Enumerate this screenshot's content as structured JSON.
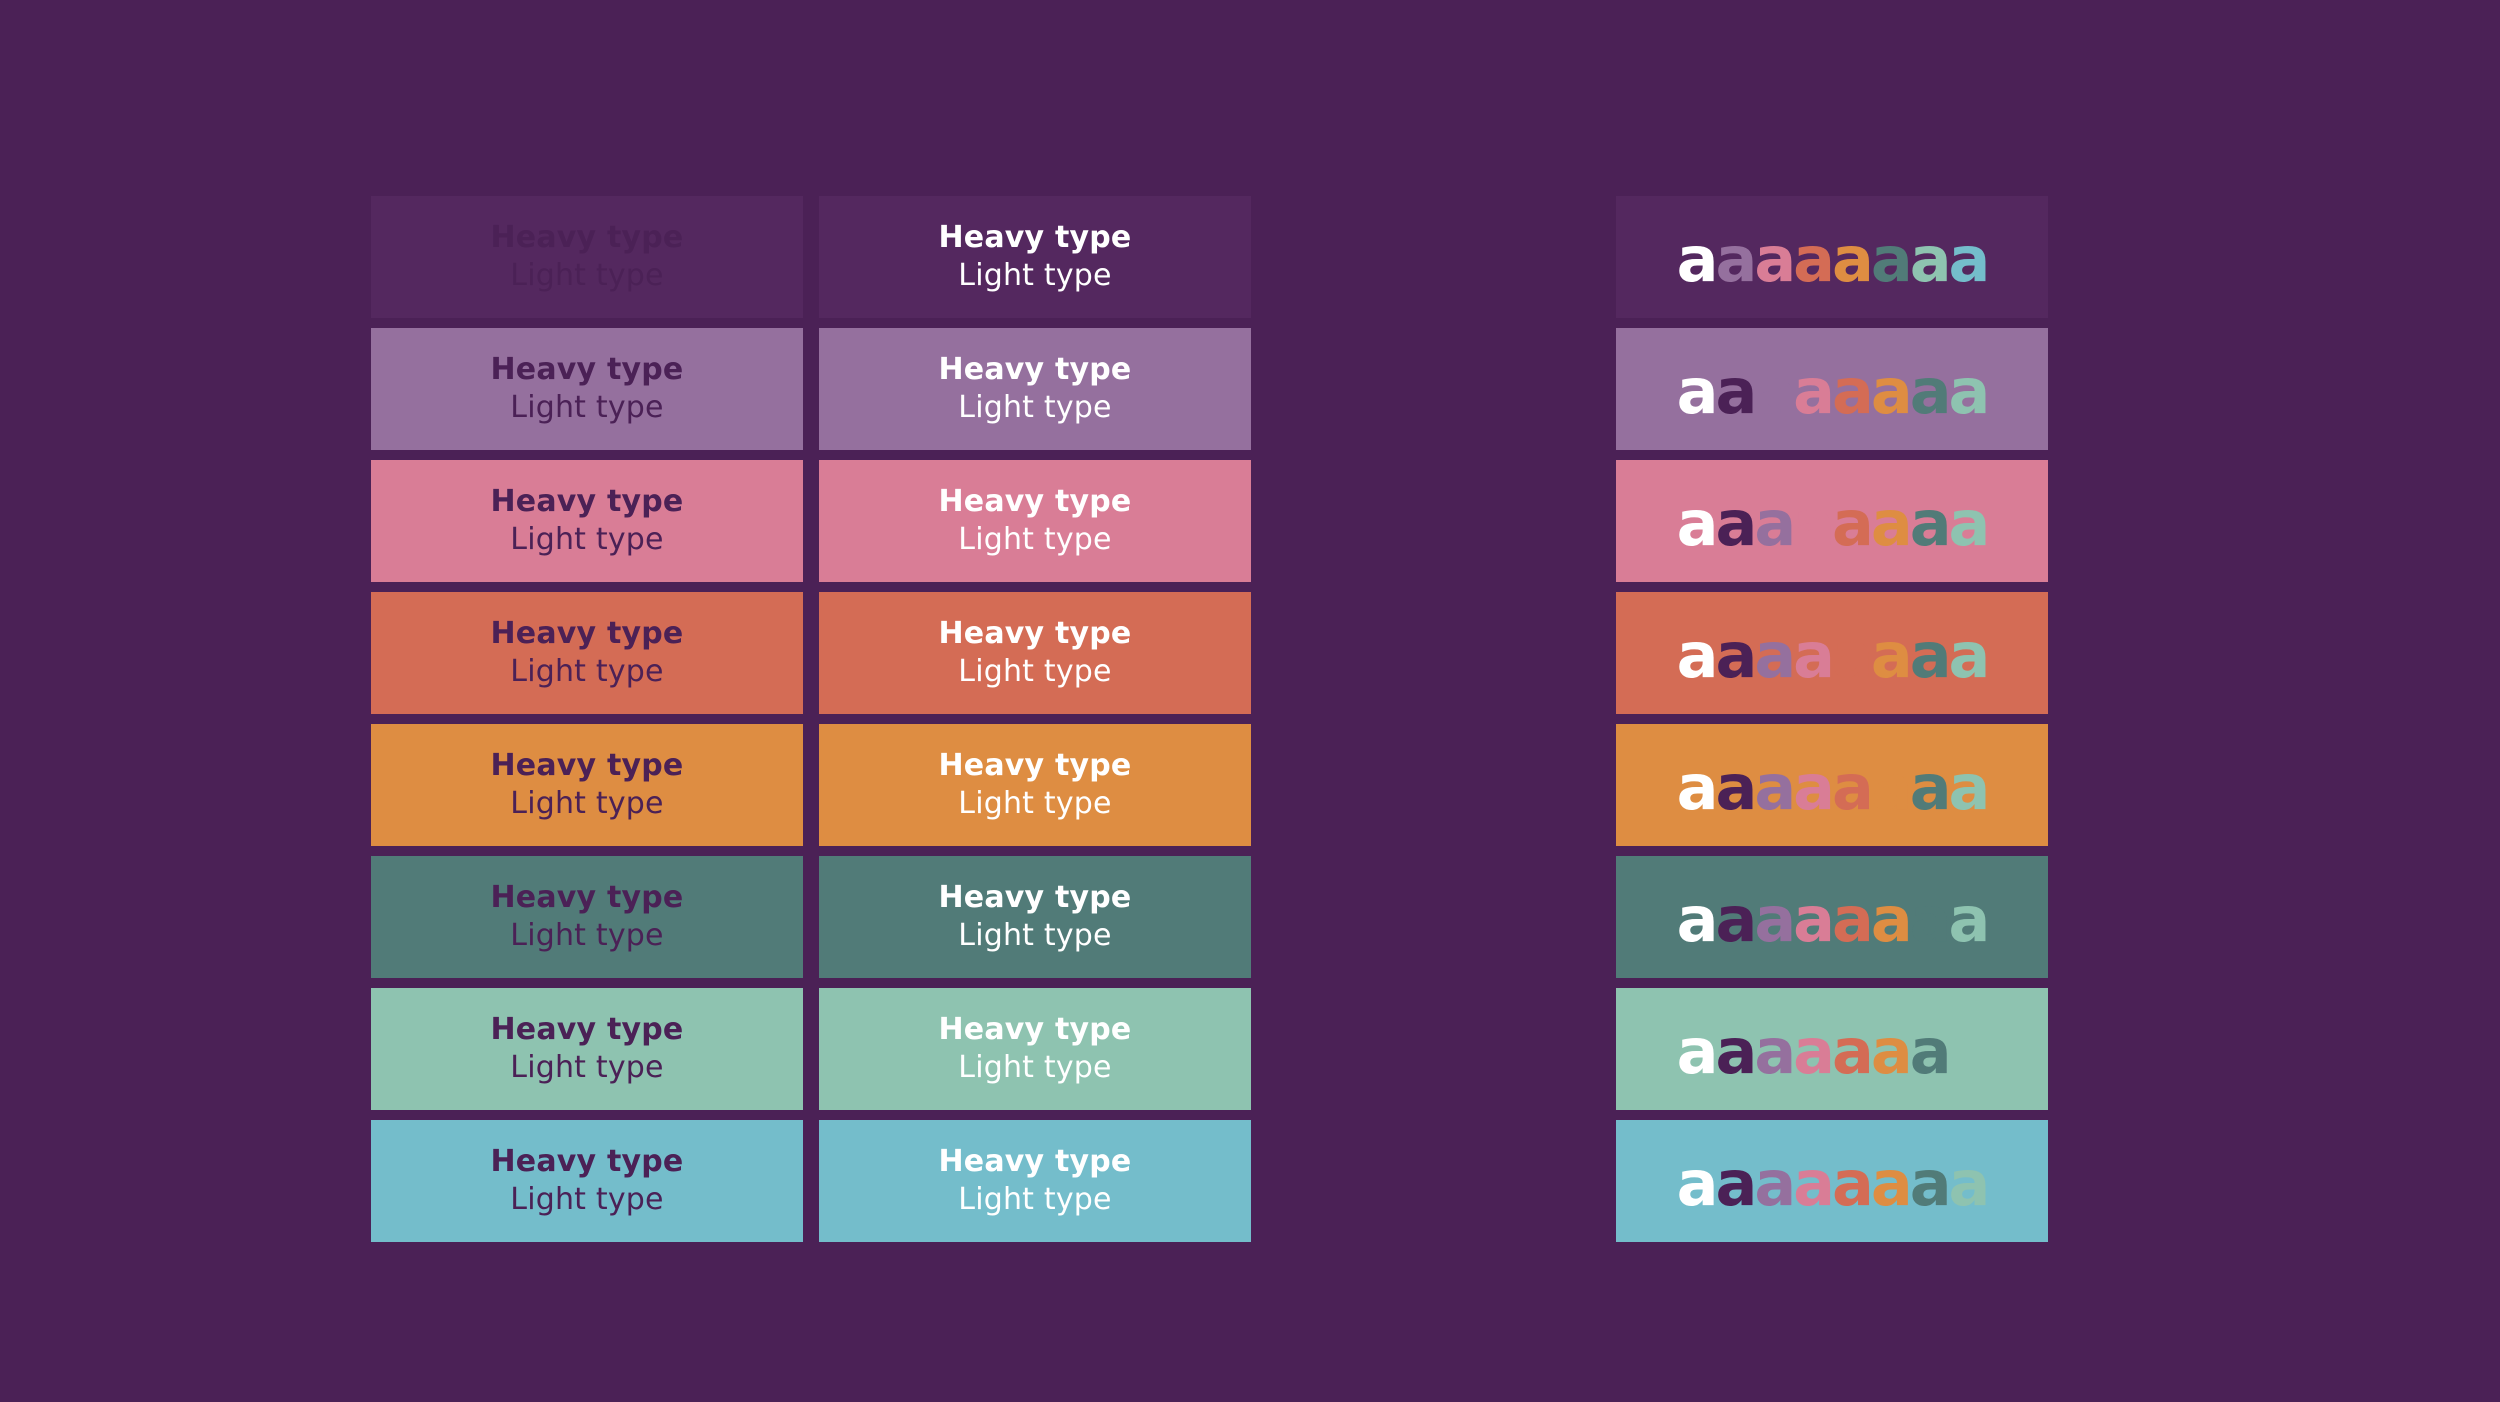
{
  "palette": [
    {
      "name": "aubergine",
      "hex": "#54285f"
    },
    {
      "name": "lavender",
      "hex": "#95709e"
    },
    {
      "name": "pink",
      "hex": "#d97d96"
    },
    {
      "name": "coral",
      "hex": "#d46c55"
    },
    {
      "name": "orange",
      "hex": "#de8d42"
    },
    {
      "name": "teal",
      "hex": "#517b78"
    },
    {
      "name": "mint",
      "hex": "#8ec3b0"
    },
    {
      "name": "sky",
      "hex": "#74bdcb"
    }
  ],
  "text_colors": {
    "dark": "#4b2156",
    "white": "#ffffff"
  },
  "sample": {
    "heavy_label": "Heavy type",
    "light_label": "Light type",
    "glyph": "a"
  },
  "glyph_colors": [
    "#ffffff",
    "#95709e",
    "#d97d96",
    "#d46c55",
    "#de8d42",
    "#517b78",
    "#8ec3b0",
    "#74bdcb"
  ],
  "glyph_colors_alt": [
    "#ffffff",
    "#4b2156",
    "#95709e",
    "#d97d96",
    "#d46c55",
    "#de8d42",
    "#517b78",
    "#8ec3b0",
    "#74bdcb"
  ]
}
